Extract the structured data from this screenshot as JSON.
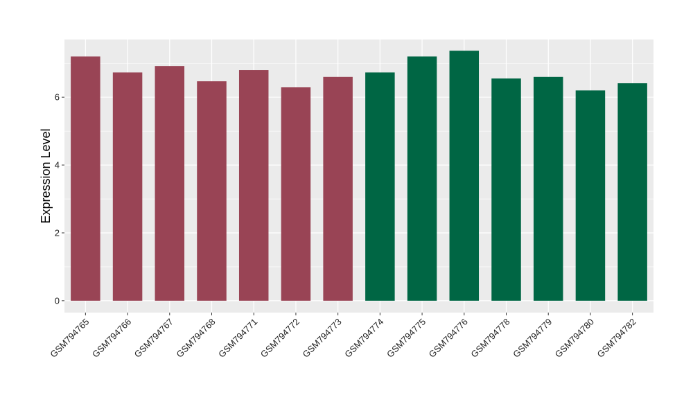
{
  "chart_data": {
    "type": "bar",
    "title": "",
    "xlabel": "",
    "ylabel": "Expression Level",
    "ylim": [
      -0.35,
      7.7
    ],
    "yticks": [
      0,
      2,
      4,
      6
    ],
    "grid": true,
    "legend": "none",
    "categories": [
      "GSM794765",
      "GSM794766",
      "GSM794767",
      "GSM794768",
      "GSM794771",
      "GSM794772",
      "GSM794773",
      "GSM794774",
      "GSM794775",
      "GSM794776",
      "GSM794778",
      "GSM794779",
      "GSM794780",
      "GSM794782"
    ],
    "values": [
      7.2,
      6.73,
      6.92,
      6.47,
      6.8,
      6.29,
      6.6,
      6.73,
      7.2,
      7.37,
      6.55,
      6.6,
      6.2,
      6.41
    ],
    "bar_colors": [
      "#994455",
      "#994455",
      "#994455",
      "#994455",
      "#994455",
      "#994455",
      "#994455",
      "#006644",
      "#006644",
      "#006644",
      "#006644",
      "#006644",
      "#006644",
      "#006644"
    ],
    "panel_background": "#EBEBEB",
    "grid_color": "#FFFFFF"
  }
}
